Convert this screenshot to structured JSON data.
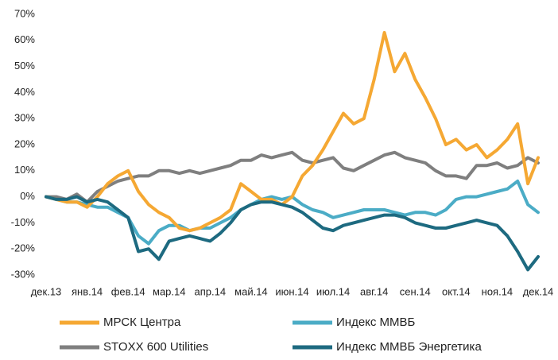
{
  "chart_data": {
    "type": "line",
    "xlim": [
      0,
      12
    ],
    "xticks": [
      {
        "value": 0,
        "label": "дек.13"
      },
      {
        "value": 1,
        "label": "янв.14"
      },
      {
        "value": 2,
        "label": "фев.14"
      },
      {
        "value": 3,
        "label": "мар.14"
      },
      {
        "value": 4,
        "label": "апр.14"
      },
      {
        "value": 5,
        "label": "май.14"
      },
      {
        "value": 6,
        "label": "июн.14"
      },
      {
        "value": 7,
        "label": "июл.14"
      },
      {
        "value": 8,
        "label": "авг.14"
      },
      {
        "value": 9,
        "label": "сен.14"
      },
      {
        "value": 10,
        "label": "окт.14"
      },
      {
        "value": 11,
        "label": "ноя.14"
      },
      {
        "value": 12,
        "label": "дек.14"
      }
    ],
    "ylim": [
      -30,
      70
    ],
    "yticks": [
      {
        "value": -30,
        "label": "-30%"
      },
      {
        "value": -20,
        "label": "-20%"
      },
      {
        "value": -10,
        "label": "-10%"
      },
      {
        "value": 0,
        "label": "0%"
      },
      {
        "value": 10,
        "label": "10%"
      },
      {
        "value": 20,
        "label": "20%"
      },
      {
        "value": 30,
        "label": "30%"
      },
      {
        "value": 40,
        "label": "40%"
      },
      {
        "value": 50,
        "label": "50%"
      },
      {
        "value": 60,
        "label": "60%"
      },
      {
        "value": 70,
        "label": "70%"
      }
    ],
    "grid": false,
    "x": [
      0,
      0.25,
      0.5,
      0.75,
      1,
      1.25,
      1.5,
      1.75,
      2,
      2.25,
      2.5,
      2.75,
      3,
      3.25,
      3.5,
      3.75,
      4,
      4.25,
      4.5,
      4.75,
      5,
      5.25,
      5.5,
      5.75,
      6,
      6.25,
      6.5,
      6.75,
      7,
      7.25,
      7.5,
      7.75,
      8,
      8.25,
      8.5,
      8.75,
      9,
      9.25,
      9.5,
      9.75,
      10,
      10.25,
      10.5,
      10.75,
      11,
      11.25,
      11.5,
      11.75,
      12
    ],
    "series": [
      {
        "name": "МРСК Центра",
        "color": "#f5a833",
        "values": [
          0,
          -1,
          -2,
          -2,
          -4,
          0,
          5,
          8,
          10,
          2,
          -3,
          -6,
          -8,
          -12,
          -13,
          -12,
          -10,
          -8,
          -5,
          5,
          2,
          -1,
          -1,
          -3,
          0,
          8,
          12,
          18,
          25,
          32,
          28,
          30,
          45,
          63,
          48,
          55,
          45,
          38,
          30,
          20,
          22,
          18,
          20,
          15,
          18,
          22,
          28,
          5,
          15
        ]
      },
      {
        "name": "Индекс ММВБ",
        "color": "#4bacc6",
        "values": [
          0,
          -1,
          -2,
          -2,
          -3,
          -4,
          -4,
          -6,
          -8,
          -15,
          -18,
          -13,
          -11,
          -11,
          -13,
          -12,
          -12,
          -10,
          -8,
          -5,
          -3,
          -1,
          0,
          -1,
          0,
          -3,
          -5,
          -6,
          -8,
          -7,
          -6,
          -5,
          -5,
          -5,
          -6,
          -7,
          -6,
          -6,
          -7,
          -5,
          -1,
          0,
          0,
          1,
          2,
          3,
          6,
          -3,
          -6
        ]
      },
      {
        "name": "STOXX 600 Utilities",
        "color": "#7f7f7f",
        "values": [
          0,
          0,
          -1,
          1,
          -2,
          2,
          4,
          6,
          7,
          8,
          8,
          10,
          10,
          9,
          10,
          9,
          10,
          11,
          12,
          14,
          14,
          16,
          15,
          16,
          17,
          14,
          13,
          14,
          15,
          11,
          10,
          12,
          14,
          16,
          17,
          15,
          14,
          13,
          10,
          8,
          8,
          7,
          12,
          12,
          13,
          11,
          12,
          15,
          13
        ]
      },
      {
        "name": "Индекс ММВБ Энергетика",
        "color": "#1d6a80",
        "values": [
          0,
          -1,
          -1,
          0,
          -2,
          -1,
          -2,
          -5,
          -8,
          -21,
          -20,
          -24,
          -17,
          -16,
          -15,
          -16,
          -17,
          -14,
          -10,
          -5,
          -3,
          -2,
          -2,
          -3,
          -4,
          -6,
          -9,
          -12,
          -13,
          -11,
          -10,
          -9,
          -8,
          -7,
          -7,
          -8,
          -10,
          -11,
          -12,
          -12,
          -11,
          -10,
          -9,
          -10,
          -11,
          -15,
          -21,
          -28,
          -23
        ]
      }
    ]
  }
}
